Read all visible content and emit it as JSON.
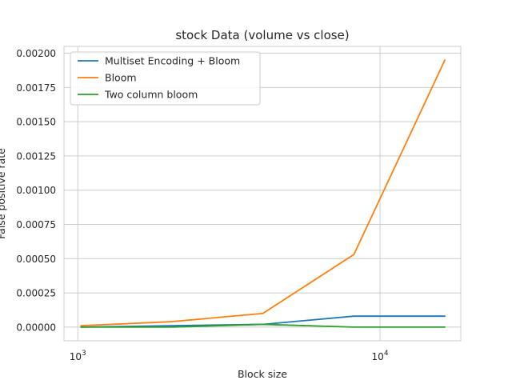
{
  "chart_data": {
    "type": "line",
    "title": "stock Data (volume vs close)",
    "xlabel": "Block size",
    "ylabel": "False positive rate",
    "x_scale": "log",
    "x": [
      1024,
      2048,
      4096,
      8192,
      16384
    ],
    "xlim": [
      900,
      18500
    ],
    "ylim": [
      -0.0001,
      0.00205
    ],
    "x_ticks": [
      {
        "value": 1000,
        "base": "10",
        "exp": "3"
      },
      {
        "value": 10000,
        "base": "10",
        "exp": "4"
      }
    ],
    "y_ticks": [
      0,
      0.00025,
      0.0005,
      0.00075,
      0.001,
      0.00125,
      0.0015,
      0.00175,
      0.002
    ],
    "y_tick_labels": [
      "0.00000",
      "0.00025",
      "0.00050",
      "0.00075",
      "0.00100",
      "0.00125",
      "0.00150",
      "0.00175",
      "0.00200"
    ],
    "grid": true,
    "legend_position": "top-left",
    "series": [
      {
        "name": "Multiset Encoding + Bloom",
        "color": "#1f77b4",
        "values": [
          0.0,
          1e-05,
          2e-05,
          8e-05,
          8e-05
        ]
      },
      {
        "name": "Bloom",
        "color": "#ff7f0e",
        "values": [
          1e-05,
          4e-05,
          0.0001,
          0.00053,
          0.00195
        ]
      },
      {
        "name": "Two column bloom",
        "color": "#2ca02c",
        "values": [
          0.0,
          0.0,
          2e-05,
          0.0,
          0.0
        ]
      }
    ]
  }
}
